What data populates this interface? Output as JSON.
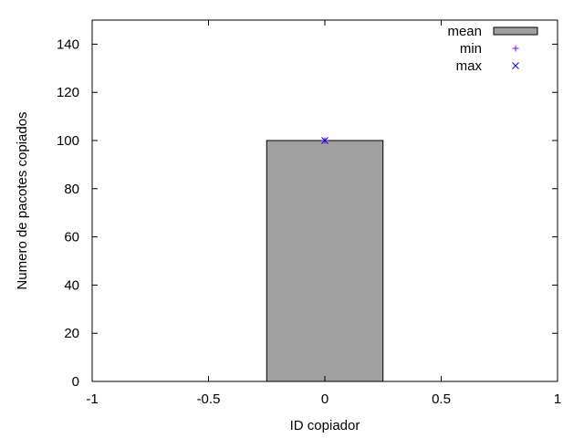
{
  "chart_data": {
    "type": "bar",
    "title": "",
    "xlabel": "ID copiador",
    "ylabel": "Numero de pacotes copiados",
    "xlim": [
      -1,
      1
    ],
    "ylim": [
      0,
      150
    ],
    "x_ticks": [
      -1,
      -0.5,
      0,
      0.5,
      1
    ],
    "x_tick_labels": [
      "-1",
      "-0.5",
      "0",
      "0.5",
      "1"
    ],
    "y_ticks": [
      0,
      20,
      40,
      60,
      80,
      100,
      120,
      140
    ],
    "y_tick_labels": [
      "0",
      "20",
      "40",
      "60",
      "80",
      "100",
      "120",
      "140"
    ],
    "bar_width": 0.5,
    "series": [
      {
        "name": "mean",
        "kind": "bar",
        "x": [
          0
        ],
        "values": [
          100
        ],
        "color": "#a0a0a0"
      },
      {
        "name": "min",
        "kind": "point",
        "marker": "plus",
        "x": [
          0
        ],
        "values": [
          100
        ],
        "color": "#9400d3"
      },
      {
        "name": "max",
        "kind": "point",
        "marker": "cross",
        "x": [
          0
        ],
        "values": [
          100
        ],
        "color": "#0000cd"
      }
    ],
    "legend_position": "top-right",
    "grid": false
  }
}
